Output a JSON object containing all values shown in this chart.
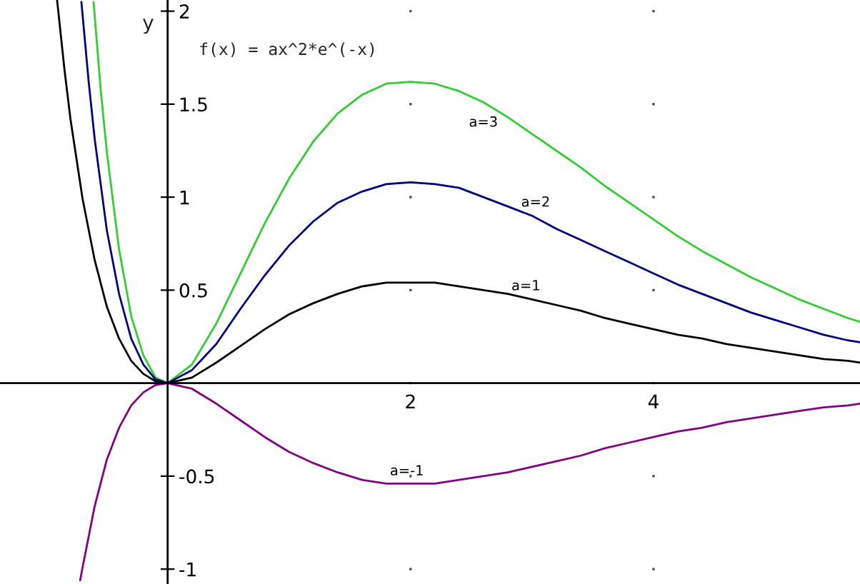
{
  "chart_data": {
    "type": "line",
    "title": "f(x) = ax^2*e^(-x)",
    "ylabel": "y",
    "xlim": [
      -1.38,
      5.7
    ],
    "ylim": [
      -1.08,
      2.06
    ],
    "xticks": [
      2,
      4
    ],
    "yticks": [
      -1,
      -0.5,
      0.5,
      1,
      1.5,
      2
    ],
    "grid": true,
    "series": [
      {
        "name": "a=3",
        "color": "#33cc33",
        "x": [
          -0.61,
          -0.55,
          -0.5,
          -0.4,
          -0.3,
          -0.2,
          -0.1,
          0,
          0.2,
          0.4,
          0.6,
          0.8,
          1.0,
          1.2,
          1.4,
          1.6,
          1.8,
          2.0,
          2.2,
          2.4,
          2.6,
          2.8,
          3.0,
          3.2,
          3.4,
          3.6,
          3.8,
          4.0,
          4.2,
          4.4,
          4.6,
          4.8,
          5.0,
          5.2,
          5.4,
          5.6,
          5.7
        ],
        "values": [
          2.05,
          1.57,
          1.24,
          0.72,
          0.36,
          0.15,
          0.03,
          0,
          0.1,
          0.32,
          0.59,
          0.86,
          1.1,
          1.3,
          1.45,
          1.55,
          1.61,
          1.62,
          1.61,
          1.57,
          1.51,
          1.43,
          1.34,
          1.25,
          1.16,
          1.06,
          0.97,
          0.88,
          0.79,
          0.71,
          0.64,
          0.57,
          0.51,
          0.45,
          0.4,
          0.35,
          0.33
        ]
      },
      {
        "name": "a=2",
        "color": "#000080",
        "x": [
          -0.71,
          -0.65,
          -0.6,
          -0.5,
          -0.4,
          -0.3,
          -0.2,
          -0.1,
          0,
          0.2,
          0.4,
          0.6,
          0.8,
          1.0,
          1.2,
          1.4,
          1.6,
          1.8,
          2.0,
          2.2,
          2.4,
          2.6,
          2.8,
          3.0,
          3.2,
          3.4,
          3.6,
          3.8,
          4.0,
          4.2,
          4.4,
          4.6,
          4.8,
          5.0,
          5.2,
          5.4,
          5.6,
          5.7
        ],
        "values": [
          2.05,
          1.62,
          1.31,
          0.82,
          0.48,
          0.24,
          0.1,
          0.02,
          0,
          0.07,
          0.21,
          0.4,
          0.58,
          0.74,
          0.87,
          0.97,
          1.03,
          1.07,
          1.08,
          1.07,
          1.05,
          1.0,
          0.95,
          0.9,
          0.83,
          0.77,
          0.71,
          0.65,
          0.59,
          0.53,
          0.48,
          0.43,
          0.38,
          0.34,
          0.3,
          0.26,
          0.23,
          0.22
        ]
      },
      {
        "name": "a=1",
        "color": "#000000",
        "x": [
          -0.91,
          -0.85,
          -0.8,
          -0.7,
          -0.6,
          -0.5,
          -0.4,
          -0.3,
          -0.2,
          -0.1,
          0,
          0.2,
          0.4,
          0.6,
          0.8,
          1.0,
          1.2,
          1.4,
          1.6,
          1.8,
          2.0,
          2.2,
          2.4,
          2.6,
          2.8,
          3.0,
          3.2,
          3.4,
          3.6,
          3.8,
          4.0,
          4.2,
          4.4,
          4.6,
          4.8,
          5.0,
          5.2,
          5.4,
          5.6,
          5.7
        ],
        "values": [
          2.06,
          1.69,
          1.42,
          0.99,
          0.66,
          0.41,
          0.24,
          0.12,
          0.05,
          0.01,
          0,
          0.03,
          0.11,
          0.2,
          0.29,
          0.37,
          0.43,
          0.48,
          0.52,
          0.54,
          0.54,
          0.54,
          0.52,
          0.5,
          0.48,
          0.45,
          0.42,
          0.39,
          0.35,
          0.32,
          0.29,
          0.26,
          0.24,
          0.21,
          0.19,
          0.17,
          0.15,
          0.13,
          0.12,
          0.11
        ]
      },
      {
        "name": "a=-1",
        "color": "#800080",
        "x": [
          -0.72,
          -0.7,
          -0.6,
          -0.5,
          -0.4,
          -0.3,
          -0.2,
          -0.1,
          0,
          0.2,
          0.4,
          0.6,
          0.8,
          1.0,
          1.2,
          1.4,
          1.6,
          1.8,
          2.0,
          2.2,
          2.4,
          2.6,
          2.8,
          3.0,
          3.2,
          3.4,
          3.6,
          3.8,
          4.0,
          4.2,
          4.4,
          4.6,
          4.8,
          5.0,
          5.2,
          5.4,
          5.6,
          5.7
        ],
        "values": [
          -1.06,
          -0.99,
          -0.66,
          -0.41,
          -0.24,
          -0.12,
          -0.05,
          -0.01,
          0,
          -0.03,
          -0.11,
          -0.2,
          -0.29,
          -0.37,
          -0.43,
          -0.48,
          -0.52,
          -0.54,
          -0.54,
          -0.54,
          -0.52,
          -0.5,
          -0.48,
          -0.45,
          -0.42,
          -0.39,
          -0.35,
          -0.32,
          -0.29,
          -0.26,
          -0.24,
          -0.21,
          -0.19,
          -0.17,
          -0.15,
          -0.13,
          -0.12,
          -0.11
        ]
      }
    ]
  }
}
